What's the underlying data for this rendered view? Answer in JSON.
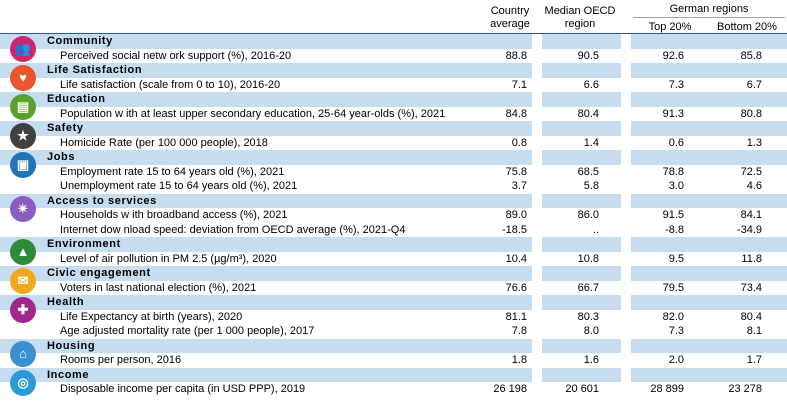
{
  "header": {
    "col1": "Country average",
    "col2": "Median OECD region",
    "group": "German regions",
    "col3": "Top 20%",
    "col4": "Bottom 20%"
  },
  "sections": [
    {
      "category": "Community",
      "icon": "community-icon",
      "color": "#d1246a",
      "rows": [
        {
          "label": "Perceived social netw ork support (%), 2016-20",
          "v": [
            "88.8",
            "90.5",
            "92.6",
            "85.8"
          ]
        }
      ]
    },
    {
      "category": "Life Satisfaction",
      "icon": "heart-icon",
      "color": "#e8552e",
      "rows": [
        {
          "label": "Life satisfaction (scale from 0 to 10), 2016-20",
          "v": [
            "7.1",
            "6.6",
            "7.3",
            "6.7"
          ]
        }
      ]
    },
    {
      "category": "Education",
      "icon": "book-icon",
      "color": "#5aa02c",
      "rows": [
        {
          "label": "Population w ith at least upper secondary education, 25-64 year-olds  (%), 2021",
          "v": [
            "84.8",
            "80.4",
            "91.3",
            "80.8"
          ]
        }
      ]
    },
    {
      "category": "Safety",
      "icon": "walker-icon",
      "color": "#404040",
      "rows": [
        {
          "label": "Homicide Rate (per 100 000 people), 2018",
          "v": [
            "0.8",
            "1.4",
            "0.6",
            "1.3"
          ]
        }
      ]
    },
    {
      "category": "Jobs",
      "icon": "briefcase-icon",
      "color": "#1f75b5",
      "rows": [
        {
          "label": "Employment rate 15 to 64 years old (%), 2021",
          "v": [
            "75.8",
            "68.5",
            "78.8",
            "72.5"
          ]
        },
        {
          "label": "Unemployment rate 15 to 64 years old (%), 2021",
          "v": [
            "3.7",
            "5.8",
            "3.0",
            "4.6"
          ]
        }
      ]
    },
    {
      "category": "Access to services",
      "icon": "network-icon",
      "color": "#8a5cc0",
      "rows": [
        {
          "label": "Households w ith broadband access (%), 2021",
          "v": [
            "89.0",
            "86.0",
            "91.5",
            "84.1"
          ]
        },
        {
          "label": "Internet dow nload speed: deviation from OECD average (%), 2021-Q4",
          "v": [
            "-18.5",
            "..",
            "-8.8",
            "-34.9"
          ]
        }
      ]
    },
    {
      "category": "Environment",
      "icon": "tree-icon",
      "color": "#2e8b3a",
      "rows": [
        {
          "label": "Level of air pollution in PM 2.5 (µg/m³), 2020",
          "v": [
            "10.4",
            "10.8",
            "9.5",
            "11.8"
          ]
        }
      ]
    },
    {
      "category": "Civic engagement",
      "icon": "envelope-icon",
      "color": "#f0a820",
      "rows": [
        {
          "label": "Voters in last national election (%), 2021",
          "v": [
            "76.6",
            "66.7",
            "79.5",
            "73.4"
          ]
        }
      ]
    },
    {
      "category": "Health",
      "icon": "cross-icon",
      "color": "#a0288c",
      "rows": [
        {
          "label": "Life Expectancy at birth (years), 2020",
          "v": [
            "81.1",
            "80.3",
            "82.0",
            "80.4"
          ]
        },
        {
          "label": "Age adjusted mortality rate (per 1 000 people), 2017",
          "v": [
            "7.8",
            "8.0",
            "7.3",
            "8.1"
          ]
        }
      ]
    },
    {
      "category": "Housing",
      "icon": "house-icon",
      "color": "#3a8fd0",
      "rows": [
        {
          "label": "Rooms per person, 2016",
          "v": [
            "1.8",
            "1.6",
            "2.0",
            "1.7"
          ]
        }
      ]
    },
    {
      "category": "Income",
      "icon": "coins-icon",
      "color": "#2a9ad8",
      "rows": [
        {
          "label": "Disposable income per capita (in USD PPP), 2019",
          "v": [
            "26 198",
            "20 601",
            "28 899",
            "23 278"
          ]
        }
      ]
    }
  ]
}
